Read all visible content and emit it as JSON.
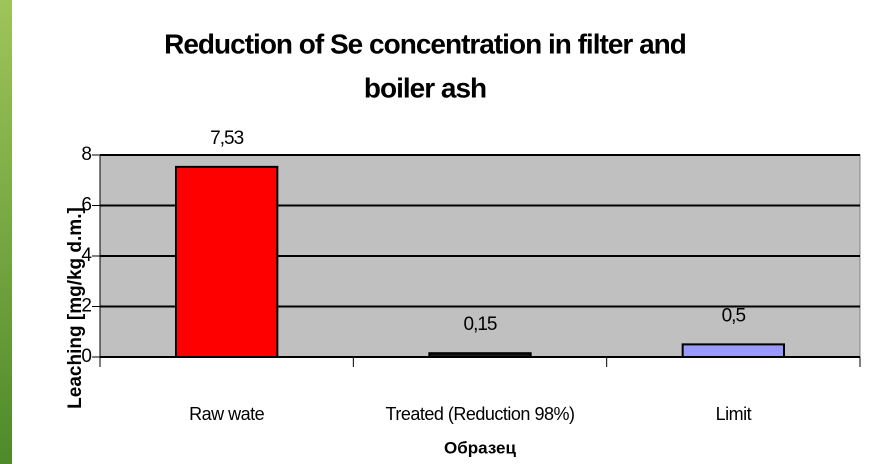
{
  "chart_data": {
    "type": "bar",
    "title": [
      "Reduction of Se concentration in filter and",
      "boiler ash"
    ],
    "categories": [
      "Raw wate",
      "Treated (Reduction 98%)",
      "Limit"
    ],
    "values": [
      7.53,
      0.15,
      0.5
    ],
    "value_labels": [
      "7,53",
      "0,15",
      "0,5"
    ],
    "colors": [
      "#ff0000",
      "#1a1a1a",
      "#9999ff"
    ],
    "x_label": "Образец",
    "y_label": "Leaching [mg/kg d.m.]",
    "ylim": [
      0,
      8
    ],
    "yticks": [
      0,
      2,
      4,
      6,
      8
    ],
    "grid": true
  }
}
